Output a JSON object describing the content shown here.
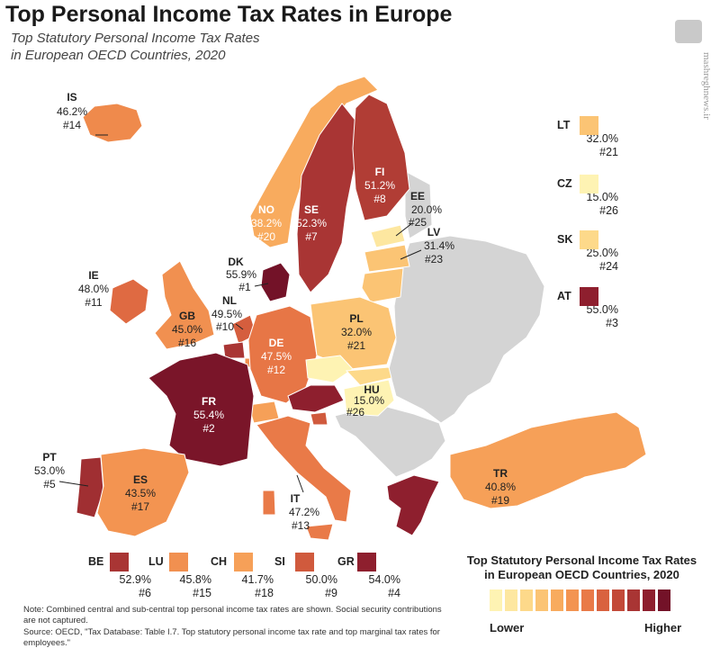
{
  "title": "Top Personal Income Tax Rates in Europe",
  "subtitle_line1": "Top Statutory Personal Income Tax Rates",
  "subtitle_line2": "in European OECD Countries, 2020",
  "watermark": "mashreghnews.ir",
  "colors": {
    "non_oecd": "#d4d4d4",
    "scale": [
      "#fef3b3",
      "#fde7a0",
      "#fdd98a",
      "#fbc474",
      "#f8ab5e",
      "#f39451",
      "#e97a48",
      "#d9623f",
      "#c34a39",
      "#a93534",
      "#8e1f2e",
      "#731228"
    ]
  },
  "countries": [
    {
      "code": "IS",
      "rate": "46.2%",
      "rank": "#14",
      "color": "#ef8a4c"
    },
    {
      "code": "NO",
      "rate": "38.2%",
      "rank": "#20",
      "color": "#f8ab5e"
    },
    {
      "code": "SE",
      "rate": "52.3%",
      "rank": "#7",
      "color": "#a93534"
    },
    {
      "code": "FI",
      "rate": "51.2%",
      "rank": "#8",
      "color": "#b13d35"
    },
    {
      "code": "EE",
      "rate": "20.0%",
      "rank": "#25",
      "color": "#fde7a0"
    },
    {
      "code": "LV",
      "rate": "31.4%",
      "rank": "#23",
      "color": "#fbc474"
    },
    {
      "code": "DK",
      "rate": "55.9%",
      "rank": "#1",
      "color": "#731228"
    },
    {
      "code": "IE",
      "rate": "48.0%",
      "rank": "#11",
      "color": "#df6a42"
    },
    {
      "code": "NL",
      "rate": "49.5%",
      "rank": "#10",
      "color": "#d55e3e"
    },
    {
      "code": "GB",
      "rate": "45.0%",
      "rank": "#16",
      "color": "#f19050"
    },
    {
      "code": "DE",
      "rate": "47.5%",
      "rank": "#12",
      "color": "#e77646"
    },
    {
      "code": "PL",
      "rate": "32.0%",
      "rank": "#21",
      "color": "#fbc474"
    },
    {
      "code": "FR",
      "rate": "55.4%",
      "rank": "#2",
      "color": "#7a1529"
    },
    {
      "code": "HU",
      "rate": "15.0%",
      "rank": "#26",
      "color": "#fef3b3"
    },
    {
      "code": "PT",
      "rate": "53.0%",
      "rank": "#5",
      "color": "#a02f32"
    },
    {
      "code": "ES",
      "rate": "43.5%",
      "rank": "#17",
      "color": "#f39451"
    },
    {
      "code": "IT",
      "rate": "47.2%",
      "rank": "#13",
      "color": "#e97a48"
    },
    {
      "code": "TR",
      "rate": "40.8%",
      "rank": "#19",
      "color": "#f6a058"
    }
  ],
  "side_legend": [
    {
      "code": "LT",
      "rate": "32.0%",
      "rank": "#21",
      "color": "#fbc474"
    },
    {
      "code": "CZ",
      "rate": "15.0%",
      "rank": "#26",
      "color": "#fef3b3"
    },
    {
      "code": "SK",
      "rate": "25.0%",
      "rank": "#24",
      "color": "#fdd98a"
    },
    {
      "code": "AT",
      "rate": "55.0%",
      "rank": "#3",
      "color": "#8e1f2e"
    }
  ],
  "bottom_legend": [
    {
      "code": "BE",
      "rate": "52.9%",
      "rank": "#6",
      "color": "#a93534"
    },
    {
      "code": "LU",
      "rate": "45.8%",
      "rank": "#15",
      "color": "#f19050"
    },
    {
      "code": "CH",
      "rate": "41.7%",
      "rank": "#18",
      "color": "#f6a058"
    },
    {
      "code": "SI",
      "rate": "50.0%",
      "rank": "#9",
      "color": "#d05a3d"
    },
    {
      "code": "GR",
      "rate": "54.0%",
      "rank": "#4",
      "color": "#8e1f2e"
    }
  ],
  "scale_title_line1": "Top Statutory Personal Income Tax Rates",
  "scale_title_line2": "in European OECD Countries, 2020",
  "scale_low": "Lower",
  "scale_high": "Higher",
  "note": "Note: Combined central and sub-central top personal income tax rates are shown. Social security contributions are not captured.",
  "source": "Source: OECD, \"Tax Database: Table I.7. Top statutory personal income tax rate and top marginal tax rates for employees.\""
}
